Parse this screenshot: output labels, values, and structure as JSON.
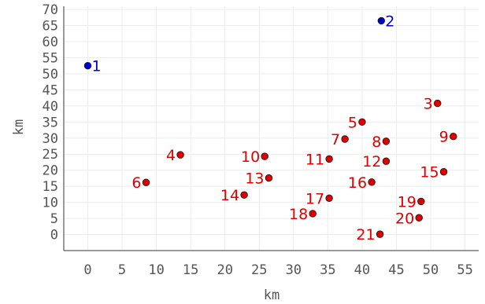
{
  "chart_data": {
    "type": "scatter",
    "title": "",
    "xlabel": "km",
    "ylabel": "km",
    "xlim": [
      -3.5,
      57
    ],
    "ylim": [
      -5,
      71
    ],
    "xticks": [
      0,
      5,
      10,
      15,
      20,
      25,
      30,
      35,
      40,
      45,
      50,
      55
    ],
    "yticks": [
      0,
      5,
      10,
      15,
      20,
      25,
      30,
      35,
      40,
      45,
      50,
      55,
      60,
      65,
      70
    ],
    "grid": true,
    "colors": {
      "blue": "#0000cc",
      "red": "#e00000"
    },
    "points": [
      {
        "label": "1",
        "x": 0,
        "y": 52.5,
        "color": "blue"
      },
      {
        "label": "2",
        "x": 42.8,
        "y": 66.5,
        "color": "blue"
      },
      {
        "label": "3",
        "x": 51.0,
        "y": 40.8,
        "color": "red"
      },
      {
        "label": "4",
        "x": 13.5,
        "y": 24.8,
        "color": "red"
      },
      {
        "label": "5",
        "x": 40.0,
        "y": 35.0,
        "color": "red"
      },
      {
        "label": "6",
        "x": 8.5,
        "y": 16.2,
        "color": "red"
      },
      {
        "label": "7",
        "x": 37.5,
        "y": 29.7,
        "color": "red"
      },
      {
        "label": "8",
        "x": 43.5,
        "y": 29.0,
        "color": "red"
      },
      {
        "label": "9",
        "x": 53.3,
        "y": 30.5,
        "color": "red"
      },
      {
        "label": "10",
        "x": 25.8,
        "y": 24.3,
        "color": "red"
      },
      {
        "label": "11",
        "x": 35.2,
        "y": 23.5,
        "color": "red"
      },
      {
        "label": "12",
        "x": 43.5,
        "y": 22.8,
        "color": "red"
      },
      {
        "label": "13",
        "x": 26.4,
        "y": 17.6,
        "color": "red"
      },
      {
        "label": "14",
        "x": 22.8,
        "y": 12.3,
        "color": "red"
      },
      {
        "label": "15",
        "x": 51.9,
        "y": 19.5,
        "color": "red"
      },
      {
        "label": "16",
        "x": 41.4,
        "y": 16.3,
        "color": "red"
      },
      {
        "label": "17",
        "x": 35.2,
        "y": 11.3,
        "color": "red"
      },
      {
        "label": "18",
        "x": 32.8,
        "y": 6.5,
        "color": "red"
      },
      {
        "label": "19",
        "x": 48.6,
        "y": 10.3,
        "color": "red"
      },
      {
        "label": "20",
        "x": 48.3,
        "y": 5.2,
        "color": "red"
      },
      {
        "label": "21",
        "x": 42.6,
        "y": 0.1,
        "color": "red"
      }
    ]
  }
}
